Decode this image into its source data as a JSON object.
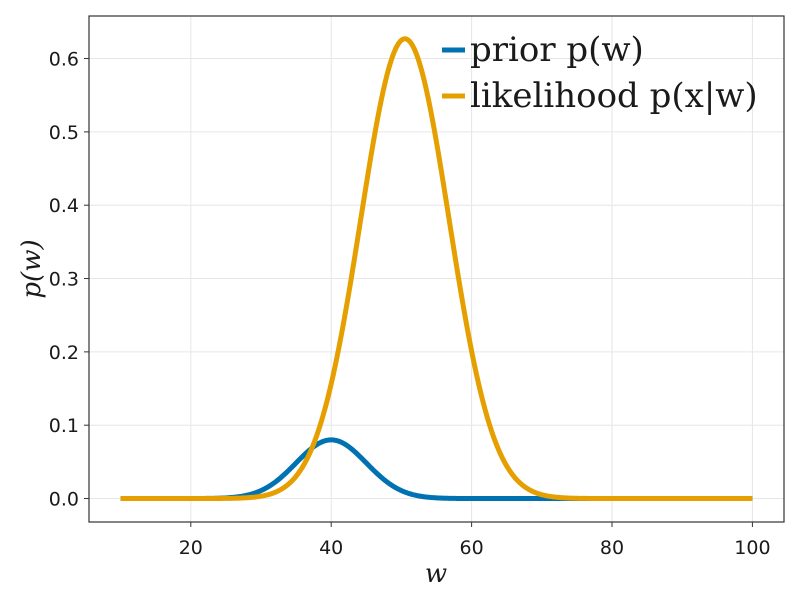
{
  "chart_data": {
    "type": "line",
    "title": "",
    "xlabel": "w",
    "ylabel": "p(w)",
    "xlim": [
      5.5,
      104.5
    ],
    "ylim": [
      -0.032,
      0.658
    ],
    "xticks": [
      20,
      40,
      60,
      80,
      100
    ],
    "yticks": [
      0.0,
      0.1,
      0.2,
      0.3,
      0.4,
      0.5,
      0.6
    ],
    "xtick_labels": [
      "20",
      "40",
      "60",
      "80",
      "100"
    ],
    "ytick_labels": [
      "0.0",
      "0.1",
      "0.2",
      "0.3",
      "0.4",
      "0.5",
      "0.6"
    ],
    "grid": true,
    "legend_position": "top-right",
    "x_range": [
      10,
      100
    ],
    "series": [
      {
        "name": "prior p(w)",
        "color": "#0072b2",
        "distribution": "normal",
        "mean": 40,
        "sd": 5,
        "peak": 0.08
      },
      {
        "name": "likelihood p(x|w)",
        "color": "#e69f00",
        "distribution": "normal",
        "mean": 50.5,
        "sd": 6.3,
        "peak": 0.627
      }
    ]
  }
}
